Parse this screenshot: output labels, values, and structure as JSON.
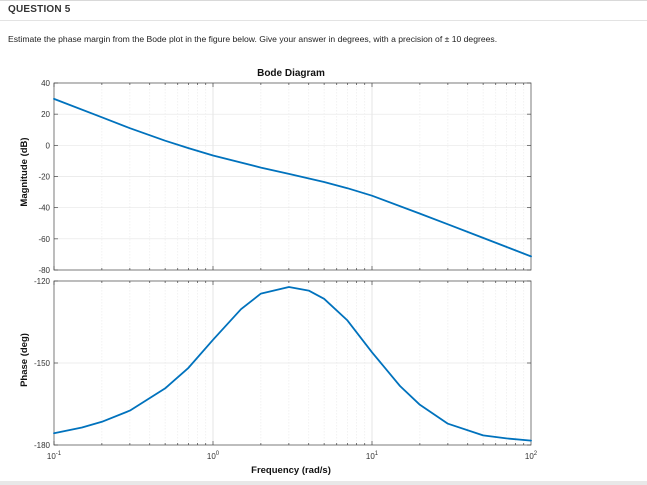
{
  "question": {
    "header": "QUESTION 5",
    "text": "Estimate the phase margin from the Bode plot in the figure below. Give your answer in degrees, with a precision of ± 10 degrees."
  },
  "chart_data": {
    "type": "line",
    "title": "Bode Diagram",
    "xlabel": "Frequency (rad/s)",
    "xscale": "log",
    "xlim": [
      0.1,
      100
    ],
    "x_ticks": [
      {
        "value": 0.1,
        "base": "10",
        "exp": "-1"
      },
      {
        "value": 1,
        "base": "10",
        "exp": "0"
      },
      {
        "value": 10,
        "base": "10",
        "exp": "1"
      },
      {
        "value": 100,
        "base": "10",
        "exp": "2"
      }
    ],
    "color": "#0072BD",
    "grid": true,
    "panels": [
      {
        "name": "magnitude",
        "ylabel": "Magnitude (dB)",
        "ylim": [
          -80,
          40
        ],
        "y_ticks": [
          "40",
          "20",
          "0",
          "-20",
          "-40",
          "-60",
          "-80"
        ],
        "y_tick_values": [
          40,
          20,
          0,
          -20,
          -40,
          -60,
          -80
        ],
        "x": [
          0.1,
          0.2,
          0.3,
          0.5,
          0.7,
          1,
          2,
          3,
          5,
          7,
          10,
          20,
          30,
          50,
          70,
          100
        ],
        "y": [
          29.8,
          18,
          11,
          3,
          -1.8,
          -6.5,
          -14.3,
          -18.3,
          -23.5,
          -27.5,
          -32.3,
          -43.8,
          -50.7,
          -59.4,
          -65.2,
          -71.3
        ]
      },
      {
        "name": "phase",
        "ylabel": "Phase (deg)",
        "ylim": [
          -180,
          -120
        ],
        "y_ticks": [
          "-120",
          "-150",
          "-180"
        ],
        "y_tick_values": [
          -120,
          -150,
          -180
        ],
        "x": [
          0.1,
          0.15,
          0.2,
          0.3,
          0.5,
          0.7,
          1,
          1.5,
          2,
          3,
          4,
          5,
          7,
          10,
          15,
          20,
          30,
          50,
          70,
          100
        ],
        "y": [
          -175.7,
          -173.6,
          -171.5,
          -167.4,
          -159.3,
          -151.8,
          -141.5,
          -130.3,
          -124.6,
          -122.2,
          -123.5,
          -126.5,
          -134.4,
          -146.1,
          -158.4,
          -165.3,
          -172.2,
          -176.5,
          -177.6,
          -178.4
        ]
      }
    ]
  }
}
